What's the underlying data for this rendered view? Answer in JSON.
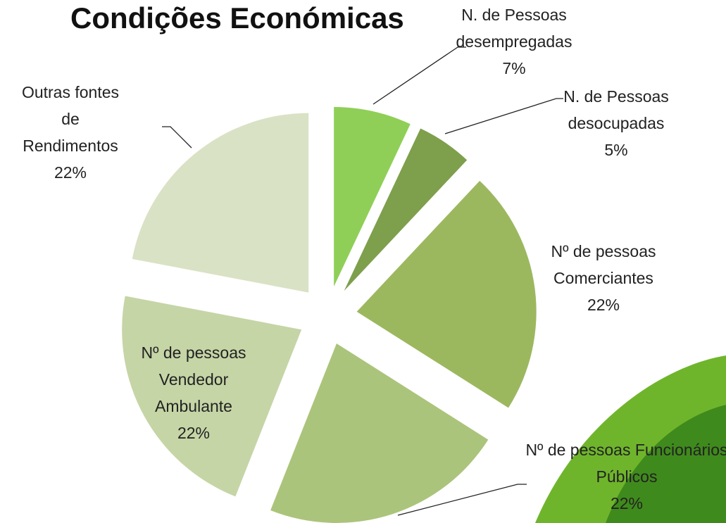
{
  "chart_data": {
    "type": "pie",
    "title": "Condições Económicas",
    "categories": [
      "N. de Pessoas desempregadas",
      "N. de Pessoas desocupadas",
      "Nº de pessoas Comerciantes",
      "Nº de pessoas Funcionários Públicos",
      "Nº de pessoas Vendedor Ambulante",
      "Outras fontes de Rendimentos"
    ],
    "values": [
      7,
      5,
      22,
      22,
      22,
      22
    ],
    "value_labels": [
      "7%",
      "5%",
      "22%",
      "22%",
      "22%",
      "22%"
    ],
    "colors": [
      "#8fcf57",
      "#7e9f4c",
      "#9bb85f",
      "#abc47b",
      "#c5d5a6",
      "#d9e2c4"
    ]
  }
}
